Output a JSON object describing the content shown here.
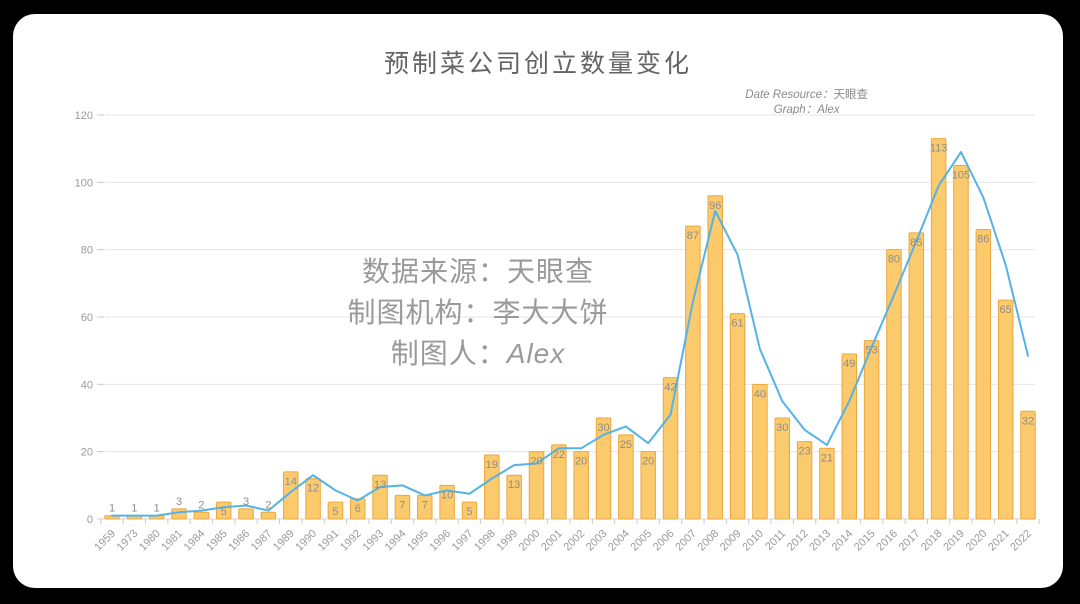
{
  "page": {
    "background": "#000000",
    "card_background": "#ffffff"
  },
  "title": "预制菜公司创立数量变化",
  "annotation": {
    "line1_label": "Date Resource：",
    "line1_value": "天眼查",
    "line2_label": "Graph：",
    "line2_value": "Alex"
  },
  "watermark": {
    "line1": "数据来源：天眼查",
    "line2": "制图机构：李大大饼",
    "line3_label": "制图人：",
    "line3_value": "Alex"
  },
  "chart_data": {
    "type": "bar",
    "title": "预制菜公司创立数量变化",
    "categories": [
      "1959",
      "1973",
      "1980",
      "1981",
      "1984",
      "1985",
      "1986",
      "1987",
      "1989",
      "1990",
      "1991",
      "1992",
      "1993",
      "1994",
      "1995",
      "1996",
      "1997",
      "1998",
      "1999",
      "2000",
      "2001",
      "2002",
      "2003",
      "2004",
      "2005",
      "2006",
      "2007",
      "2008",
      "2009",
      "2010",
      "2011",
      "2012",
      "2013",
      "2014",
      "2015",
      "2016",
      "2017",
      "2018",
      "2019",
      "2020",
      "2021",
      "2022"
    ],
    "values": [
      1,
      1,
      1,
      3,
      2,
      5,
      3,
      2,
      14,
      12,
      5,
      6,
      13,
      7,
      7,
      10,
      5,
      19,
      13,
      20,
      22,
      20,
      30,
      25,
      20,
      42,
      87,
      96,
      61,
      40,
      30,
      23,
      21,
      49,
      53,
      80,
      85,
      113,
      105,
      86,
      65,
      32
    ],
    "line_values": [
      1,
      1,
      1,
      2,
      2.5,
      3.5,
      4,
      2.5,
      8,
      13,
      8.5,
      5.5,
      9.5,
      10,
      7,
      8.5,
      7.5,
      12,
      16,
      16.5,
      21,
      21,
      25,
      27.5,
      22.5,
      31,
      64.5,
      91.5,
      78.5,
      50.5,
      35,
      26.5,
      22,
      35,
      51,
      66.5,
      82.5,
      99,
      109,
      95.5,
      75.5,
      48.5
    ],
    "ylim": [
      0,
      120
    ],
    "yticks": [
      0,
      20,
      40,
      60,
      80,
      100,
      120
    ],
    "grid": true,
    "legend": "none",
    "xlabel": "",
    "ylabel": "",
    "colors": {
      "bar_fill": "#fbca6d",
      "bar_border": "#eca63e",
      "line": "#54b3e6",
      "bar_value_label": "#8d8d8d",
      "axis_text": "#9a9a9a",
      "gridline": "#e4e4e4",
      "axis_line": "#d6d6d6",
      "tick": "#cccccc"
    }
  }
}
